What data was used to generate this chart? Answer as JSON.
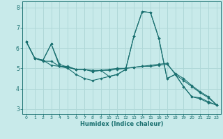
{
  "xlabel": "Humidex (Indice chaleur)",
  "background_color": "#c8eaea",
  "grid_color": "#b0d8d8",
  "line_color": "#1a7070",
  "xlim": [
    -0.5,
    23.5
  ],
  "ylim": [
    2.75,
    8.3
  ],
  "yticks": [
    3,
    4,
    5,
    6,
    7,
    8
  ],
  "xticks": [
    0,
    1,
    2,
    3,
    4,
    5,
    6,
    7,
    8,
    9,
    10,
    11,
    12,
    13,
    14,
    15,
    16,
    17,
    18,
    19,
    20,
    21,
    22,
    23
  ],
  "series": [
    [
      6.3,
      5.5,
      5.4,
      6.2,
      5.1,
      5.0,
      4.7,
      4.5,
      4.4,
      4.5,
      4.6,
      4.7,
      4.95,
      6.6,
      7.8,
      7.75,
      6.5,
      4.5,
      4.7,
      4.1,
      3.6,
      3.55,
      3.35,
      3.2
    ],
    [
      6.3,
      5.5,
      5.35,
      5.35,
      5.1,
      5.1,
      4.95,
      4.95,
      4.9,
      4.9,
      4.9,
      4.95,
      5.0,
      5.05,
      5.1,
      5.15,
      5.2,
      5.25,
      4.7,
      4.4,
      4.1,
      3.8,
      3.55,
      3.2
    ],
    [
      6.3,
      5.5,
      5.4,
      5.15,
      5.1,
      5.05,
      4.95,
      4.95,
      4.85,
      4.9,
      4.95,
      5.0,
      5.0,
      5.05,
      5.1,
      5.1,
      5.15,
      5.2,
      4.75,
      4.5,
      4.15,
      3.85,
      3.6,
      3.2
    ],
    [
      6.3,
      5.5,
      5.4,
      6.2,
      5.2,
      5.05,
      4.95,
      4.95,
      4.85,
      4.9,
      4.6,
      4.7,
      4.95,
      6.6,
      7.8,
      7.75,
      6.5,
      4.5,
      4.7,
      4.1,
      3.6,
      3.5,
      3.3,
      3.2
    ]
  ]
}
